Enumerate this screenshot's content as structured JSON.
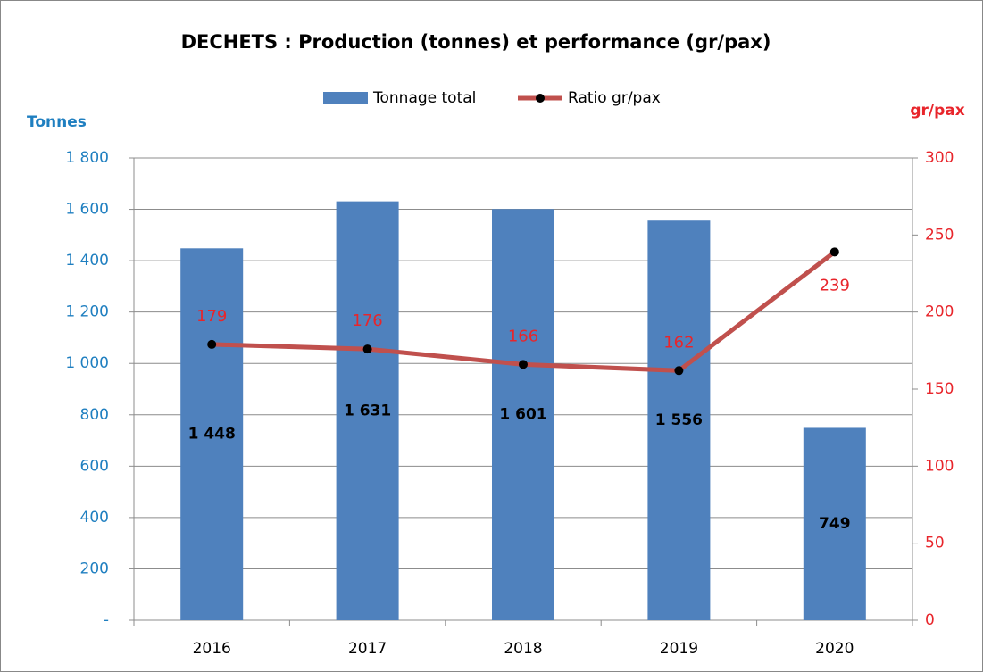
{
  "chart_data": {
    "type": "bar-line",
    "title": "DECHETS : Production (tonnes) et performance (gr/pax)",
    "y_axis_label": "Tonnes",
    "y2_axis_label": "gr/pax",
    "categories": [
      "2016",
      "2017",
      "2018",
      "2019",
      "2020"
    ],
    "series": [
      {
        "name": "Tonnage total",
        "type": "bar",
        "color": "#4f81bd",
        "values": [
          1448,
          1631,
          1601,
          1556,
          749
        ],
        "value_labels": [
          "1 448",
          "1 631",
          "1 601",
          "1 556",
          "749"
        ]
      },
      {
        "name": "Ratio gr/pax",
        "type": "line",
        "axis": "y2",
        "color": "#c0504d",
        "marker_color": "#000000",
        "label_color": "#e8252b",
        "values": [
          179,
          176,
          166,
          162,
          239
        ]
      }
    ],
    "ylim": [
      0,
      1800
    ],
    "yticks": [
      {
        "value": 0,
        "label": "-"
      },
      200,
      400,
      600,
      800,
      {
        "value": 1000,
        "label": "1 000"
      },
      {
        "value": 1200,
        "label": "1 200"
      },
      {
        "value": 1400,
        "label": "1 400"
      },
      {
        "value": 1600,
        "label": "1 600"
      },
      {
        "value": 1800,
        "label": "1 800"
      }
    ],
    "y2lim": [
      0,
      300
    ],
    "y2ticks": [
      0,
      50,
      100,
      150,
      200,
      250,
      300
    ],
    "grid": true,
    "legend": "top"
  }
}
